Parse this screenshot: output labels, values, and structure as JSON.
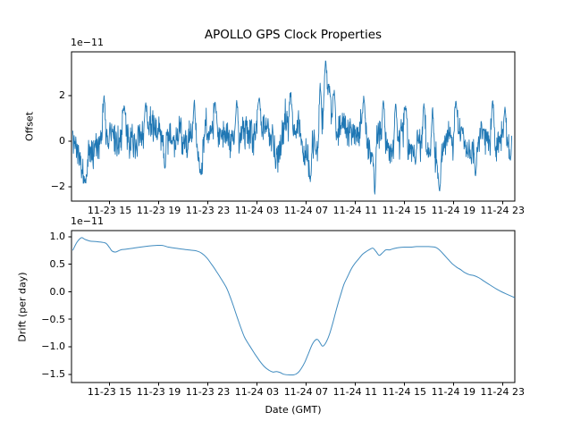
{
  "chart_data": [
    {
      "type": "line",
      "name": "offset",
      "title": "APOLLO GPS Clock Properties",
      "ylabel": "Offset",
      "y_scale_label": "1e−11",
      "series_color": "#1f77b4",
      "ylim": [
        -2.63,
        3.92
      ],
      "yticks": [
        {
          "v": 2,
          "label": "2"
        },
        {
          "v": 0,
          "label": "0"
        },
        {
          "v": -2,
          "label": "−2"
        }
      ],
      "t_range": [
        0,
        35.75
      ],
      "note": "dense zero-mean noisy series in units of 1e-11; values read from pixel envelope",
      "mean_keypoints": [
        [
          0,
          0.1
        ],
        [
          0.5,
          -0.5
        ],
        [
          0.9,
          -1.0
        ],
        [
          1.2,
          -0.6
        ],
        [
          1.6,
          0.1
        ],
        [
          2.0,
          0.45
        ],
        [
          2.6,
          0.5
        ],
        [
          3.2,
          0.45
        ],
        [
          3.8,
          0.25
        ],
        [
          4.5,
          0.15
        ],
        [
          5.2,
          0.1
        ],
        [
          5.9,
          0.25
        ],
        [
          6.5,
          0.0
        ],
        [
          7.2,
          0.1
        ],
        [
          8.0,
          0.05
        ],
        [
          8.8,
          0.15
        ],
        [
          9.6,
          0.2
        ],
        [
          10.3,
          -0.3
        ],
        [
          10.8,
          0.1
        ],
        [
          11.4,
          0.25
        ],
        [
          12.2,
          0.0
        ],
        [
          12.8,
          0.3
        ],
        [
          13.3,
          0.55
        ],
        [
          13.8,
          0.3
        ],
        [
          14.4,
          0.1
        ],
        [
          15.0,
          0.55
        ],
        [
          15.5,
          0.75
        ],
        [
          16.0,
          0.3
        ],
        [
          16.7,
          -0.4
        ],
        [
          17.2,
          0.3
        ],
        [
          17.7,
          0.55
        ],
        [
          18.2,
          0.1
        ],
        [
          18.8,
          -0.2
        ],
        [
          19.4,
          -0.5
        ],
        [
          19.9,
          -0.3
        ],
        [
          20.3,
          1.0
        ],
        [
          20.6,
          1.5
        ],
        [
          21.0,
          0.9
        ],
        [
          21.5,
          0.6
        ],
        [
          22.0,
          0.35
        ],
        [
          22.6,
          0.1
        ],
        [
          23.2,
          0.0
        ],
        [
          23.9,
          0.3
        ],
        [
          24.4,
          -0.3
        ],
        [
          25.0,
          0.0
        ],
        [
          25.6,
          -0.1
        ],
        [
          26.2,
          0.1
        ],
        [
          26.9,
          0.2
        ],
        [
          27.6,
          -0.3
        ],
        [
          28.3,
          0.1
        ],
        [
          28.8,
          0.3
        ],
        [
          29.5,
          -0.2
        ],
        [
          30.0,
          -0.3
        ],
        [
          30.6,
          0.3
        ],
        [
          31.2,
          0.35
        ],
        [
          31.9,
          0.0
        ],
        [
          32.5,
          -0.2
        ],
        [
          33.2,
          0.25
        ],
        [
          33.9,
          0.1
        ],
        [
          34.5,
          0.0
        ],
        [
          35.0,
          0.2
        ],
        [
          35.5,
          -0.2
        ],
        [
          35.75,
          0.2
        ]
      ],
      "spikes": [
        [
          1.0,
          -1.75
        ],
        [
          2.55,
          2.05
        ],
        [
          4.2,
          1.55
        ],
        [
          5.95,
          1.7
        ],
        [
          7.5,
          -1.3
        ],
        [
          9.9,
          1.87
        ],
        [
          10.45,
          -1.5
        ],
        [
          11.6,
          1.75
        ],
        [
          13.35,
          1.8
        ],
        [
          15.2,
          1.95
        ],
        [
          17.75,
          2.15
        ],
        [
          19.35,
          -1.8
        ],
        [
          20.15,
          2.6
        ],
        [
          20.6,
          3.67
        ],
        [
          20.85,
          2.5
        ],
        [
          21.3,
          2.25
        ],
        [
          23.7,
          2.0
        ],
        [
          24.6,
          -2.36
        ],
        [
          25.3,
          1.8
        ],
        [
          26.3,
          1.75
        ],
        [
          27.1,
          1.6
        ],
        [
          27.9,
          -1.05
        ],
        [
          28.6,
          1.7
        ],
        [
          29.3,
          1.55
        ],
        [
          29.85,
          -2.2
        ],
        [
          31.2,
          1.8
        ],
        [
          32.8,
          -1.55
        ],
        [
          34.2,
          1.85
        ],
        [
          35.2,
          1.5
        ],
        [
          35.65,
          -0.9
        ]
      ],
      "noise": {
        "seed": 11,
        "n": 1300,
        "sigma_fast": 0.34,
        "sigma_slow": 0.12,
        "slow_ar": 0.92
      }
    },
    {
      "type": "line",
      "name": "drift",
      "ylabel": "Drift (per day)",
      "xlabel": "Date (GMT)",
      "y_scale_label": "1e−11",
      "series_color": "#1f77b4",
      "ylim": [
        -1.65,
        1.11
      ],
      "yticks": [
        {
          "v": 1.0,
          "label": "1.0"
        },
        {
          "v": 0.5,
          "label": "0.5"
        },
        {
          "v": 0.0,
          "label": "0.0"
        },
        {
          "v": -0.5,
          "label": "−0.5"
        },
        {
          "v": -1.0,
          "label": "−1.0"
        },
        {
          "v": -1.5,
          "label": "−1.5"
        }
      ],
      "points": [
        [
          0,
          0.75
        ],
        [
          0.35,
          0.9
        ],
        [
          0.7,
          0.98
        ],
        [
          1.0,
          0.95
        ],
        [
          1.4,
          0.92
        ],
        [
          1.9,
          0.91
        ],
        [
          2.3,
          0.9
        ],
        [
          2.7,
          0.88
        ],
        [
          3.0,
          0.8
        ],
        [
          3.2,
          0.74
        ],
        [
          3.5,
          0.72
        ],
        [
          3.9,
          0.76
        ],
        [
          4.3,
          0.77
        ],
        [
          4.9,
          0.79
        ],
        [
          5.5,
          0.81
        ],
        [
          6.2,
          0.83
        ],
        [
          6.8,
          0.84
        ],
        [
          7.3,
          0.84
        ],
        [
          7.8,
          0.81
        ],
        [
          8.4,
          0.79
        ],
        [
          9.0,
          0.77
        ],
        [
          9.6,
          0.755
        ],
        [
          10.1,
          0.74
        ],
        [
          10.5,
          0.7
        ],
        [
          10.9,
          0.62
        ],
        [
          11.3,
          0.5
        ],
        [
          11.7,
          0.37
        ],
        [
          12.1,
          0.23
        ],
        [
          12.5,
          0.08
        ],
        [
          12.8,
          -0.08
        ],
        [
          13.1,
          -0.27
        ],
        [
          13.4,
          -0.47
        ],
        [
          13.7,
          -0.66
        ],
        [
          14.0,
          -0.83
        ],
        [
          14.4,
          -0.98
        ],
        [
          14.8,
          -1.12
        ],
        [
          15.2,
          -1.25
        ],
        [
          15.6,
          -1.36
        ],
        [
          16.0,
          -1.43
        ],
        [
          16.3,
          -1.46
        ],
        [
          16.6,
          -1.45
        ],
        [
          16.9,
          -1.47
        ],
        [
          17.2,
          -1.5
        ],
        [
          17.6,
          -1.51
        ],
        [
          18.0,
          -1.51
        ],
        [
          18.3,
          -1.48
        ],
        [
          18.6,
          -1.4
        ],
        [
          18.9,
          -1.28
        ],
        [
          19.2,
          -1.12
        ],
        [
          19.5,
          -0.96
        ],
        [
          19.75,
          -0.88
        ],
        [
          19.95,
          -0.87
        ],
        [
          20.15,
          -0.93
        ],
        [
          20.35,
          -0.99
        ],
        [
          20.6,
          -0.93
        ],
        [
          20.9,
          -0.78
        ],
        [
          21.2,
          -0.55
        ],
        [
          21.5,
          -0.3
        ],
        [
          21.8,
          -0.07
        ],
        [
          22.1,
          0.14
        ],
        [
          22.4,
          0.28
        ],
        [
          22.7,
          0.42
        ],
        [
          23.0,
          0.52
        ],
        [
          23.3,
          0.6
        ],
        [
          23.6,
          0.68
        ],
        [
          23.9,
          0.73
        ],
        [
          24.2,
          0.77
        ],
        [
          24.45,
          0.79
        ],
        [
          24.7,
          0.73
        ],
        [
          24.95,
          0.66
        ],
        [
          25.2,
          0.7
        ],
        [
          25.5,
          0.76
        ],
        [
          25.8,
          0.76
        ],
        [
          26.1,
          0.78
        ],
        [
          26.5,
          0.8
        ],
        [
          27.0,
          0.81
        ],
        [
          27.5,
          0.81
        ],
        [
          28.0,
          0.82
        ],
        [
          28.5,
          0.82
        ],
        [
          29.0,
          0.82
        ],
        [
          29.5,
          0.81
        ],
        [
          29.8,
          0.77
        ],
        [
          30.2,
          0.68
        ],
        [
          30.6,
          0.58
        ],
        [
          30.9,
          0.51
        ],
        [
          31.3,
          0.44
        ],
        [
          31.6,
          0.4
        ],
        [
          31.9,
          0.35
        ],
        [
          32.3,
          0.31
        ],
        [
          32.7,
          0.29
        ],
        [
          33.1,
          0.25
        ],
        [
          33.5,
          0.19
        ],
        [
          34.0,
          0.12
        ],
        [
          34.5,
          0.05
        ],
        [
          35.0,
          -0.01
        ],
        [
          35.5,
          -0.06
        ],
        [
          36.0,
          -0.11
        ]
      ]
    }
  ],
  "x_axis": {
    "xlim": [
      -0.1,
      36.0
    ],
    "unit": "hours relative to first tick minus 3 (labels are MM-DD HH, GMT)",
    "ticks": [
      {
        "t": 3,
        "label": "11-23 15"
      },
      {
        "t": 7,
        "label": "11-23 19"
      },
      {
        "t": 11,
        "label": "11-23 23"
      },
      {
        "t": 15,
        "label": "11-24 03"
      },
      {
        "t": 19,
        "label": "11-24 07"
      },
      {
        "t": 23,
        "label": "11-24 11"
      },
      {
        "t": 27,
        "label": "11-24 15"
      },
      {
        "t": 31,
        "label": "11-24 19"
      },
      {
        "t": 35,
        "label": "11-24 23"
      }
    ]
  }
}
